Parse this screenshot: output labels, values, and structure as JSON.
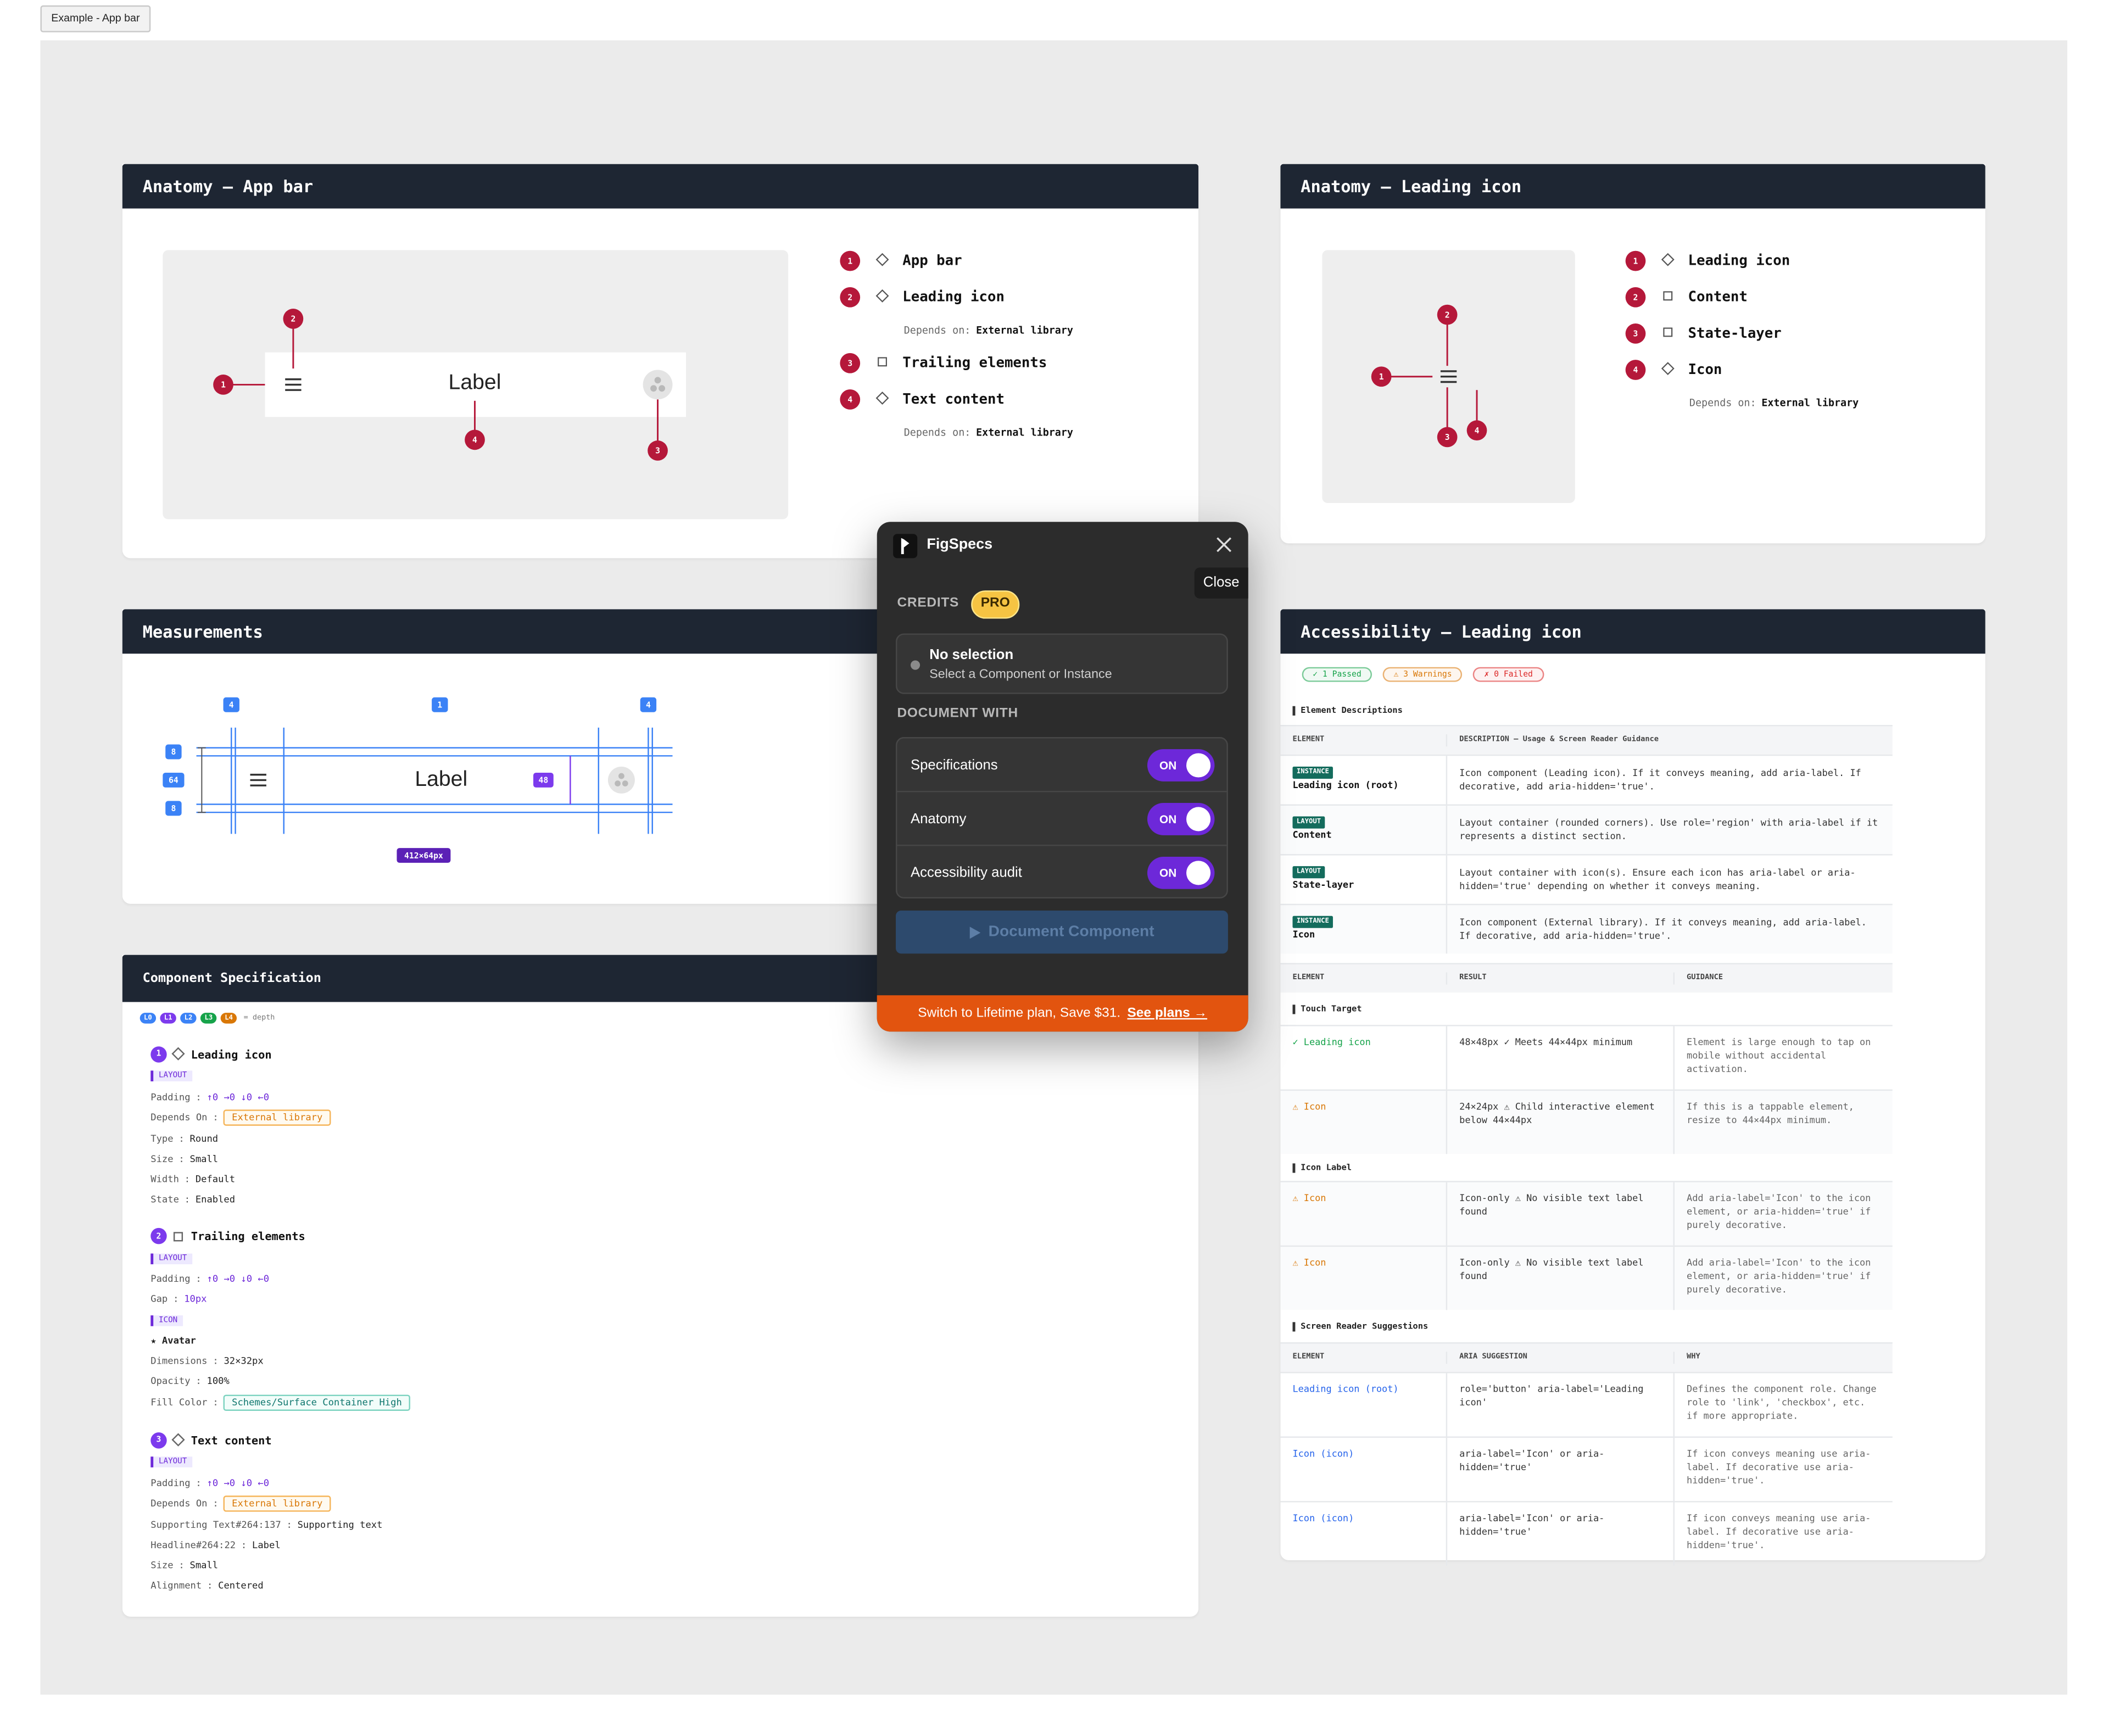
{
  "toolbar": {
    "example_button": "Example - App bar"
  },
  "anatomy_app_bar": {
    "title": "Anatomy — App bar",
    "preview_label": "Label",
    "depends_label": "Depends on:",
    "items": [
      {
        "number": 1,
        "shape": "diamond",
        "name": "App bar"
      },
      {
        "number": 2,
        "shape": "diamond",
        "name": "Leading icon",
        "depends_on": "External library"
      },
      {
        "number": 3,
        "shape": "square",
        "name": "Trailing elements"
      },
      {
        "number": 4,
        "shape": "diamond",
        "name": "Text content",
        "depends_on": "External library"
      }
    ]
  },
  "anatomy_leading_icon": {
    "title": "Anatomy — Leading icon",
    "depends_label": "Depends on:",
    "items": [
      {
        "number": 1,
        "shape": "diamond",
        "name": "Leading icon"
      },
      {
        "number": 2,
        "shape": "square",
        "name": "Content"
      },
      {
        "number": 3,
        "shape": "square",
        "name": "State-layer"
      },
      {
        "number": 4,
        "shape": "diamond",
        "name": "Icon",
        "depends_on": "External library"
      }
    ]
  },
  "measurements": {
    "title": "Measurements",
    "preview_label": "Label",
    "top_spacing": [
      4,
      1,
      4
    ],
    "left_spacing": [
      8,
      64,
      8
    ],
    "trailing_size": 48,
    "frame_size": "412×64px"
  },
  "component_specification": {
    "title": "Component Specification",
    "depth_levels": [
      "L0",
      "L1",
      "L2",
      "L3",
      "L4"
    ],
    "depth_legend": "= depth",
    "separator": ":",
    "items": [
      {
        "number": 1,
        "shape": "diamond",
        "name": "Leading icon",
        "rows": [
          {
            "tag": "LAYOUT"
          },
          {
            "key": "Padding",
            "value": "↑0 →0 ↓0 ←0",
            "style": "accent"
          },
          {
            "key": "Depends On",
            "value": "External library",
            "style": "chip-orange"
          },
          {
            "key": "Type",
            "value": "Round"
          },
          {
            "key": "Size",
            "value": "Small"
          },
          {
            "key": "Width",
            "value": "Default"
          },
          {
            "key": "State",
            "value": "Enabled"
          }
        ]
      },
      {
        "number": 2,
        "shape": "square",
        "name": "Trailing elements",
        "rows": [
          {
            "tag": "LAYOUT"
          },
          {
            "key": "Padding",
            "value": "↑0 →0 ↓0 ←0",
            "style": "accent"
          },
          {
            "key": "Gap",
            "value": "10px",
            "style": "accent"
          },
          {
            "tag": "ICON"
          },
          {
            "instance": "★ Avatar"
          },
          {
            "key": "Dimensions",
            "value": "32×32px"
          },
          {
            "key": "Opacity",
            "value": "100%"
          },
          {
            "key": "Fill Color",
            "value": "Schemes/Surface Container High",
            "style": "chip-teal"
          }
        ]
      },
      {
        "number": 3,
        "shape": "diamond",
        "name": "Text content",
        "rows": [
          {
            "tag": "LAYOUT"
          },
          {
            "key": "Padding",
            "value": "↑0 →0 ↓0 ←0",
            "style": "accent"
          },
          {
            "key": "Depends On",
            "value": "External library",
            "style": "chip-orange"
          },
          {
            "key": "Supporting Text#264:137",
            "value": "Supporting text"
          },
          {
            "key": "Headline#264:22",
            "value": "Label"
          },
          {
            "key": "Size",
            "value": "Small"
          },
          {
            "key": "Alignment",
            "value": "Centered"
          }
        ]
      }
    ]
  },
  "accessibility": {
    "title": "Accessibility — Leading icon",
    "summary": [
      {
        "text": "✓ 1 Passed",
        "status": "pass"
      },
      {
        "text": "⚠ 3 Warnings",
        "status": "warn"
      },
      {
        "text": "✗ 0 Failed",
        "status": "fail"
      }
    ],
    "descriptions": {
      "title": "Element Descriptions",
      "columns": [
        "ELEMENT",
        "DESCRIPTION — Usage & Screen Reader Guidance"
      ],
      "rows": [
        {
          "tag": "INSTANCE",
          "element": "Leading icon (root)",
          "description": "Icon component (Leading icon). If it conveys meaning, add aria-label. If decorative, add aria-hidden='true'."
        },
        {
          "tag": "LAYOUT",
          "element": "Content",
          "description": "Layout container (rounded corners). Use role='region' with aria-label if it represents a distinct section."
        },
        {
          "tag": "LAYOUT",
          "element": "State-layer",
          "description": "Layout container with icon(s). Ensure each icon has aria-label or aria-hidden='true' depending on whether it conveys meaning."
        },
        {
          "tag": "INSTANCE",
          "element": "Icon",
          "description": "Icon component (External library). If it conveys meaning, add aria-label. If decorative, add aria-hidden='true'."
        }
      ]
    },
    "audit_columns": [
      "ELEMENT",
      "RESULT",
      "GUIDANCE"
    ],
    "audit_groups": [
      {
        "title": "Touch Target",
        "rows": [
          {
            "status": "pass",
            "element": "✓ Leading icon",
            "result": "48×48px ✓ Meets 44×44px minimum",
            "guidance": "Element is large enough to tap on mobile without accidental activation."
          },
          {
            "status": "warn",
            "element": "⚠ Icon",
            "result": "24×24px ⚠ Child interactive element below 44×44px",
            "guidance": "If this is a tappable element, resize to 44×44px minimum."
          }
        ]
      },
      {
        "title": "Icon Label",
        "rows": [
          {
            "status": "warn",
            "element": "⚠ Icon",
            "result": "Icon-only ⚠ No visible text label found",
            "guidance": "Add aria-label='Icon' to the icon element, or aria-hidden='true' if purely decorative."
          },
          {
            "status": "warn",
            "element": "⚠ Icon",
            "result": "Icon-only ⚠ No visible text label found",
            "guidance": "Add aria-label='Icon' to the icon element, or aria-hidden='true' if purely decorative."
          }
        ]
      }
    ],
    "screen_reader": {
      "title": "Screen Reader Suggestions",
      "columns": [
        "ELEMENT",
        "ARIA SUGGESTION",
        "WHY"
      ],
      "rows": [
        {
          "element": "Leading icon (root)",
          "suggestion": "role='button'  aria-label='Leading icon'",
          "why": "Defines the component role. Change role to 'link', 'checkbox', etc. if more appropriate."
        },
        {
          "element": "Icon (icon)",
          "suggestion": "aria-label='Icon'  or aria-hidden='true'",
          "why": "If icon conveys meaning use aria-label. If decorative use aria-hidden='true'."
        },
        {
          "element": "Icon (icon)",
          "suggestion": "aria-label='Icon'  or aria-hidden='true'",
          "why": "If icon conveys meaning use aria-label. If decorative use aria-hidden='true'."
        }
      ]
    }
  },
  "figspecs": {
    "brand": "FigSpecs",
    "close_tooltip": "Close",
    "credits_label": "CREDITS",
    "plan_badge": "PRO",
    "selection_title": "No selection",
    "selection_hint": "Select a Component or Instance",
    "document_with_label": "DOCUMENT WITH",
    "toggles": [
      {
        "label": "Specifications",
        "state": "ON"
      },
      {
        "label": "Anatomy",
        "state": "ON"
      },
      {
        "label": "Accessibility audit",
        "state": "ON"
      }
    ],
    "primary_button": "Document Component",
    "promo_text": "Switch to Lifetime plan, Save $31.",
    "promo_link": "See plans →"
  }
}
